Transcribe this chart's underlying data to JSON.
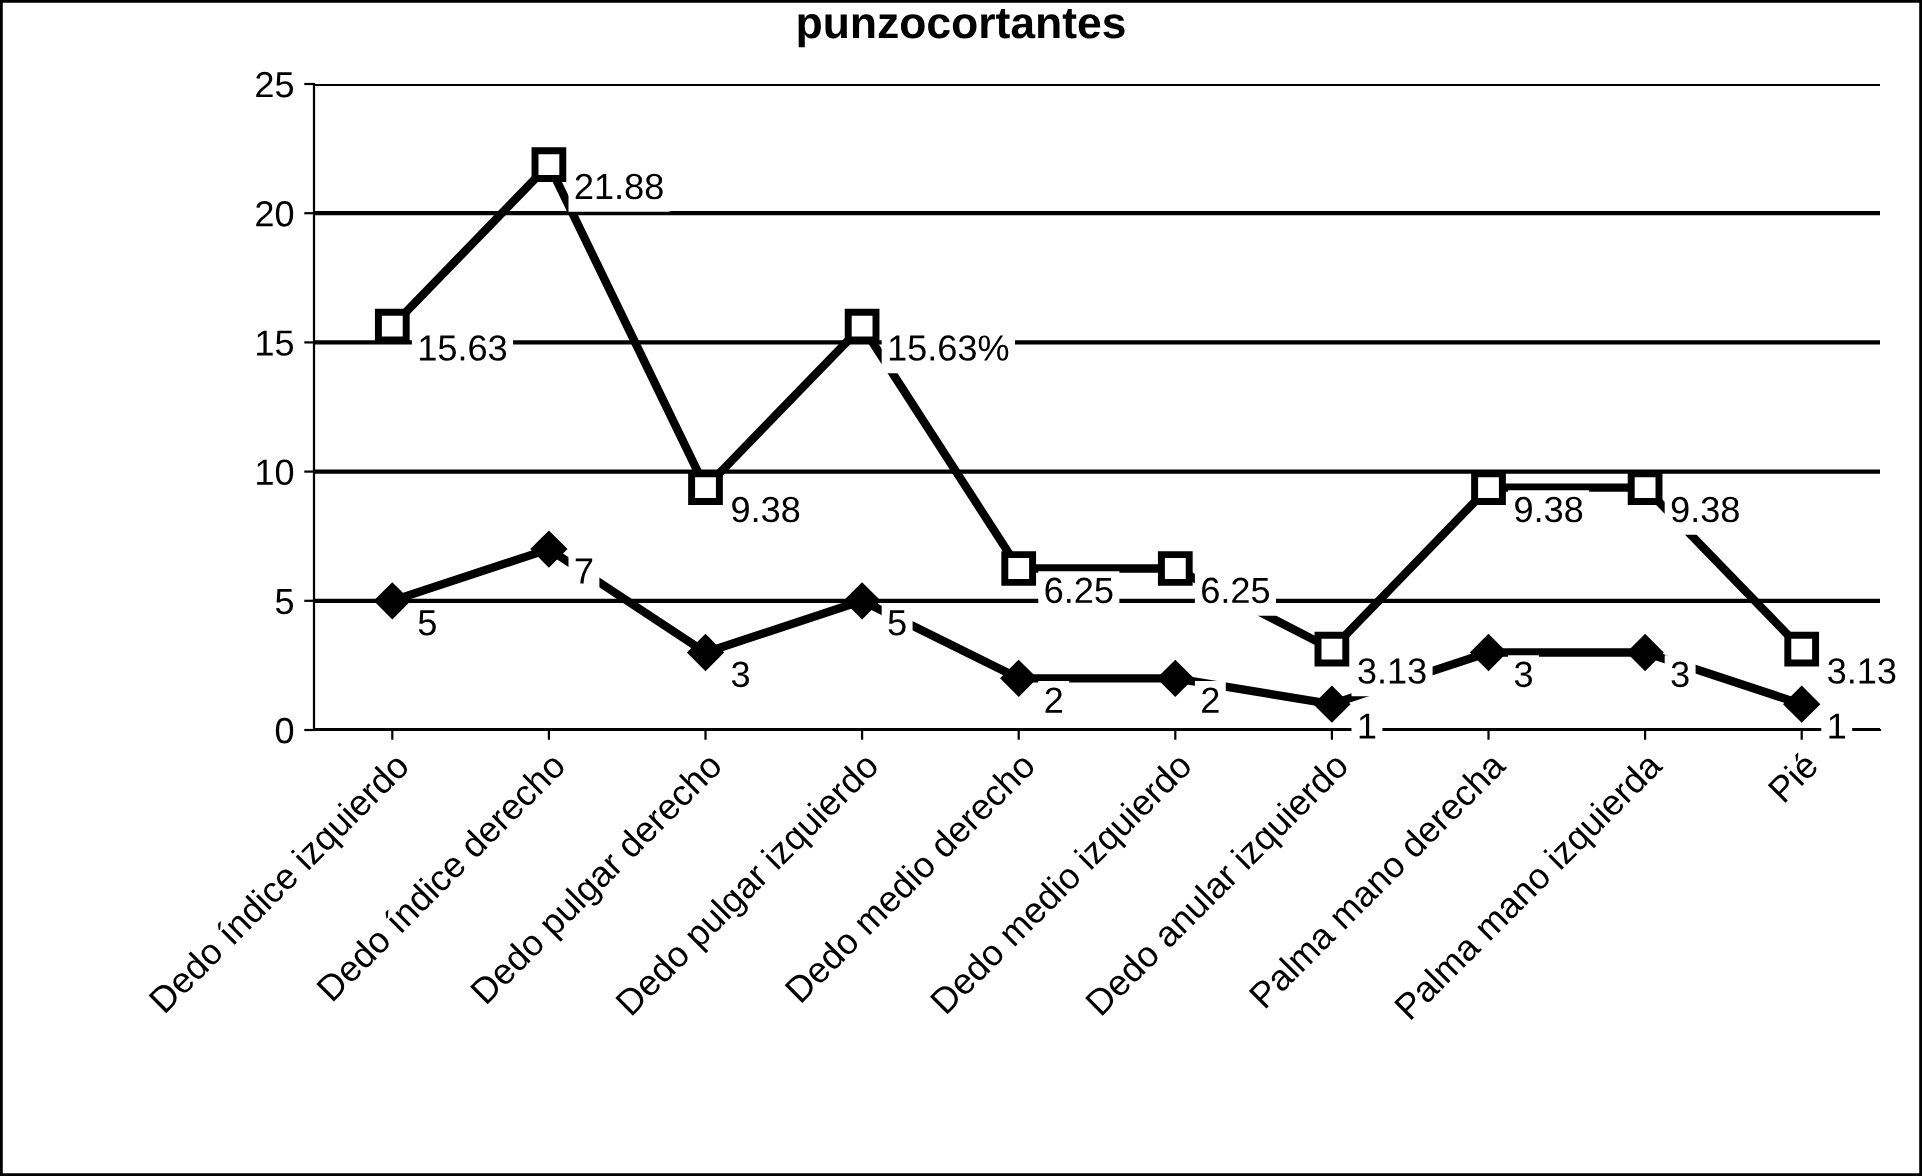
{
  "chart_data": {
    "type": "line",
    "title": "punzocortantes",
    "categories": [
      "Dedo índice izquierdo",
      "Dedo índice derecho",
      "Dedo pulgar derecho",
      "Dedo pulgar izquierdo",
      "Dedo medio derecho",
      "Dedo medio izquierdo",
      "Dedo anular izquierdo",
      "Palma mano derecha",
      "Palma mano izquierda",
      "Pié"
    ],
    "series": [
      {
        "color": "#000000",
        "marker": "square",
        "values": [
          15.63,
          21.88,
          9.38,
          15.63,
          6.25,
          6.25,
          3.13,
          9.38,
          9.38,
          3.13
        ],
        "value_labels": [
          "15.63",
          "21.88",
          "9.38",
          "15.63%",
          "6.25",
          "6.25",
          "3.13",
          "9.38",
          "9.38",
          "3.13"
        ]
      },
      {
        "color": "#000000",
        "marker": "diamond",
        "values": [
          5,
          7,
          3,
          5,
          2,
          2,
          1,
          3,
          3,
          1
        ],
        "data_labels": true
      }
    ],
    "ylim": [
      0,
      25
    ],
    "yticks": [
      0,
      5,
      10,
      15,
      20,
      25
    ],
    "grid": "y",
    "legend": false,
    "line_style": "solid"
  }
}
